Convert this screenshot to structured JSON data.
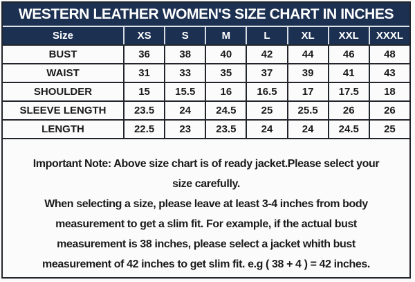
{
  "title": "WESTERN LEATHER WOMEN'S SIZE CHART IN INCHES",
  "colors": {
    "navy": "#1c3152",
    "row_bg": "#fbfbfb",
    "border_dark": "#22262c",
    "header_separator": "#d8dde3",
    "title_text": "#ffffff",
    "body_text": "#1a1a1a"
  },
  "table": {
    "columns": [
      "Size",
      "XS",
      "S",
      "M",
      "L",
      "XL",
      "XXL",
      "XXXL"
    ],
    "rows": [
      {
        "label": "BUST",
        "values": [
          "36",
          "38",
          "40",
          "42",
          "44",
          "46",
          "48"
        ]
      },
      {
        "label": "WAIST",
        "values": [
          "31",
          "33",
          "35",
          "37",
          "39",
          "41",
          "43"
        ]
      },
      {
        "label": "SHOULDER",
        "values": [
          "15",
          "15.5",
          "16",
          "16.5",
          "17",
          "17.5",
          "18"
        ]
      },
      {
        "label": "SLEEVE LENGTH",
        "values": [
          "23.5",
          "24",
          "24.5",
          "25",
          "25.5",
          "26",
          "26"
        ]
      },
      {
        "label": "LENGTH",
        "values": [
          "22.5",
          "23",
          "23.5",
          "24",
          "24",
          "24.5",
          "25"
        ]
      }
    ]
  },
  "note": {
    "lines": [
      "Important Note: Above size chart is of ready jacket.Please select your",
      "size carefully.",
      "When selecting a size, please leave at least 3-4 inches from body",
      "measurement to get a slim fit. For example, if the actual bust",
      "measurement is 38 inches, please select a jacket whith bust",
      "measurement of 42 inches to get slim fit. e.g ( 38 + 4 ) = 42 inches."
    ]
  },
  "chart_data": {
    "type": "table",
    "title": "WESTERN LEATHER WOMEN'S SIZE CHART IN INCHES",
    "categories": [
      "XS",
      "S",
      "M",
      "L",
      "XL",
      "XXL",
      "XXXL"
    ],
    "series": [
      {
        "name": "BUST",
        "values": [
          36,
          38,
          40,
          42,
          44,
          46,
          48
        ]
      },
      {
        "name": "WAIST",
        "values": [
          31,
          33,
          35,
          37,
          39,
          41,
          43
        ]
      },
      {
        "name": "SHOULDER",
        "values": [
          15,
          15.5,
          16,
          16.5,
          17,
          17.5,
          18
        ]
      },
      {
        "name": "SLEEVE LENGTH",
        "values": [
          23.5,
          24,
          24.5,
          25,
          25.5,
          26,
          26
        ]
      },
      {
        "name": "LENGTH",
        "values": [
          22.5,
          23,
          23.5,
          24,
          24,
          24.5,
          25
        ]
      }
    ],
    "layout": {
      "units": "inches",
      "note_position": "below-table"
    }
  }
}
